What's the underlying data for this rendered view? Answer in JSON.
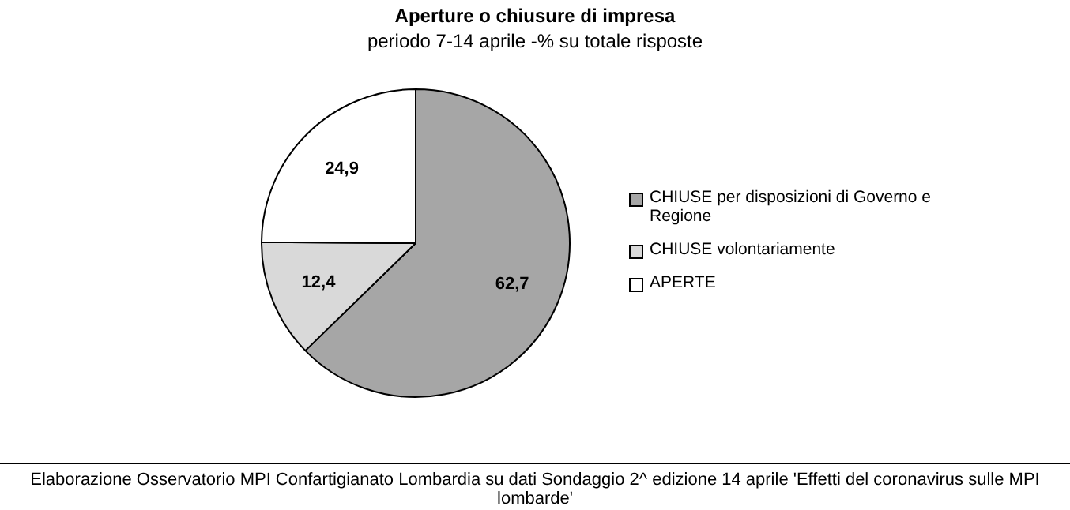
{
  "chart_data": {
    "type": "pie",
    "title": "Aperture o chiusure di impresa",
    "subtitle": "periodo 7-14 aprile -% su totale risposte",
    "categories": [
      "CHIUSE per disposizioni di Governo e Regione",
      "CHIUSE volontariamente",
      "APERTE"
    ],
    "values": [
      62.7,
      12.4,
      24.9
    ],
    "colors": [
      "#a6a6a6",
      "#d9d9d9",
      "#ffffff"
    ],
    "value_labels": [
      "62,7",
      "12,4",
      "24,9"
    ],
    "legend": "right",
    "annotations": [
      "Elaborazione Osservatorio MPI Confartigianato Lombardia su dati Sondaggio 2^ edizione 14 aprile 'Effetti del coronavirus sulle MPI lombarde'"
    ]
  }
}
